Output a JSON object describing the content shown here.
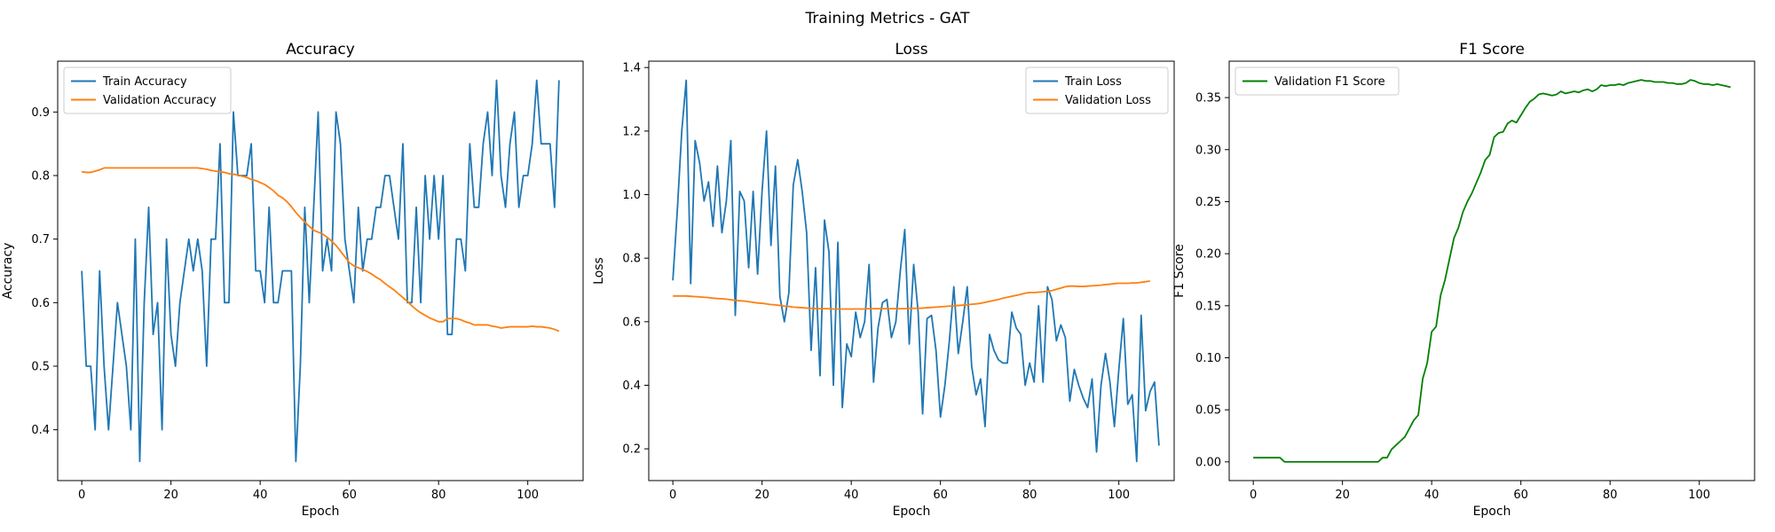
{
  "figure": {
    "suptitle": "Training Metrics - GAT"
  },
  "chart_data": [
    {
      "type": "line",
      "title": "Accuracy",
      "xlabel": "Epoch",
      "ylabel": "Accuracy",
      "xlim": [
        -5.4,
        112.4
      ],
      "ylim": [
        0.32,
        0.98
      ],
      "xticks": [
        0,
        20,
        40,
        60,
        80,
        100
      ],
      "yticks": [
        0.4,
        0.5,
        0.6,
        0.7,
        0.8,
        0.9
      ],
      "ytick_labels": [
        "0.4",
        "0.5",
        "0.6",
        "0.7",
        "0.8",
        "0.9"
      ],
      "legend_loc": "upper left",
      "grid": false,
      "series": [
        {
          "name": "Train Accuracy",
          "color": "#1f77b4",
          "values": [
            0.65,
            0.5,
            0.5,
            0.4,
            0.65,
            0.5,
            0.4,
            0.5,
            0.6,
            0.55,
            0.5,
            0.4,
            0.7,
            0.35,
            0.6,
            0.75,
            0.55,
            0.6,
            0.4,
            0.7,
            0.55,
            0.5,
            0.6,
            0.65,
            0.7,
            0.65,
            0.7,
            0.65,
            0.5,
            0.7,
            0.7,
            0.85,
            0.6,
            0.6,
            0.9,
            0.8,
            0.8,
            0.8,
            0.85,
            0.65,
            0.65,
            0.6,
            0.75,
            0.6,
            0.6,
            0.65,
            0.65,
            0.65,
            0.35,
            0.5,
            0.75,
            0.6,
            0.75,
            0.9,
            0.65,
            0.7,
            0.65,
            0.9,
            0.85,
            0.7,
            0.65,
            0.6,
            0.75,
            0.65,
            0.7,
            0.7,
            0.75,
            0.75,
            0.8,
            0.8,
            0.75,
            0.7,
            0.85,
            0.6,
            0.6,
            0.75,
            0.6,
            0.8,
            0.7,
            0.8,
            0.7,
            0.8,
            0.55,
            0.55,
            0.7,
            0.7,
            0.65,
            0.85,
            0.75,
            0.75,
            0.85,
            0.9,
            0.8,
            0.95,
            0.8,
            0.75,
            0.85,
            0.9,
            0.75,
            0.8,
            0.8,
            0.85,
            0.95,
            0.85,
            0.85,
            0.85,
            0.75,
            0.95
          ]
        },
        {
          "name": "Validation Accuracy",
          "color": "#ff7f0e",
          "values": [
            0.806,
            0.805,
            0.805,
            0.807,
            0.809,
            0.812,
            0.812,
            0.812,
            0.812,
            0.812,
            0.812,
            0.812,
            0.812,
            0.812,
            0.812,
            0.812,
            0.812,
            0.812,
            0.812,
            0.812,
            0.812,
            0.812,
            0.812,
            0.812,
            0.812,
            0.812,
            0.812,
            0.811,
            0.81,
            0.808,
            0.807,
            0.806,
            0.805,
            0.803,
            0.802,
            0.801,
            0.799,
            0.797,
            0.794,
            0.792,
            0.789,
            0.786,
            0.781,
            0.776,
            0.769,
            0.765,
            0.759,
            0.751,
            0.742,
            0.734,
            0.727,
            0.72,
            0.714,
            0.711,
            0.708,
            0.703,
            0.697,
            0.69,
            0.681,
            0.672,
            0.663,
            0.658,
            0.655,
            0.652,
            0.649,
            0.645,
            0.64,
            0.636,
            0.63,
            0.625,
            0.62,
            0.614,
            0.608,
            0.602,
            0.595,
            0.589,
            0.584,
            0.58,
            0.576,
            0.573,
            0.57,
            0.57,
            0.575,
            0.575,
            0.575,
            0.573,
            0.57,
            0.568,
            0.565,
            0.565,
            0.565,
            0.565,
            0.563,
            0.562,
            0.56,
            0.561,
            0.562,
            0.562,
            0.562,
            0.562,
            0.562,
            0.563,
            0.562,
            0.562,
            0.561,
            0.56,
            0.558,
            0.555
          ]
        }
      ]
    },
    {
      "type": "line",
      "title": "Loss",
      "xlabel": "Epoch",
      "ylabel": "Loss",
      "xlim": [
        -5.4,
        112.4
      ],
      "ylim": [
        0.1,
        1.42
      ],
      "xticks": [
        0,
        20,
        40,
        60,
        80,
        100
      ],
      "yticks": [
        0.2,
        0.4,
        0.6,
        0.8,
        1.0,
        1.2,
        1.4
      ],
      "ytick_labels": [
        "0.2",
        "0.4",
        "0.6",
        "0.8",
        "1.0",
        "1.2",
        "1.4"
      ],
      "legend_loc": "upper right",
      "grid": false,
      "series": [
        {
          "name": "Train Loss",
          "color": "#1f77b4",
          "values": [
            0.73,
            0.95,
            1.2,
            1.36,
            0.72,
            1.17,
            1.1,
            0.98,
            1.04,
            0.9,
            1.09,
            0.88,
            0.98,
            1.17,
            0.62,
            1.01,
            0.98,
            0.77,
            1.01,
            0.75,
            1.01,
            1.2,
            0.84,
            1.09,
            0.68,
            0.6,
            0.69,
            1.03,
            1.11,
            1.01,
            0.88,
            0.51,
            0.77,
            0.43,
            0.92,
            0.82,
            0.4,
            0.85,
            0.33,
            0.53,
            0.49,
            0.63,
            0.55,
            0.6,
            0.78,
            0.41,
            0.58,
            0.66,
            0.67,
            0.55,
            0.6,
            0.76,
            0.89,
            0.53,
            0.78,
            0.63,
            0.31,
            0.61,
            0.62,
            0.51,
            0.3,
            0.4,
            0.54,
            0.71,
            0.5,
            0.6,
            0.71,
            0.46,
            0.37,
            0.42,
            0.27,
            0.56,
            0.51,
            0.48,
            0.47,
            0.47,
            0.63,
            0.58,
            0.56,
            0.4,
            0.47,
            0.41,
            0.65,
            0.41,
            0.71,
            0.67,
            0.54,
            0.59,
            0.55,
            0.35,
            0.45,
            0.4,
            0.36,
            0.33,
            0.42,
            0.19,
            0.4,
            0.5,
            0.41,
            0.27,
            0.45,
            0.61,
            0.34,
            0.37,
            0.16,
            0.62,
            0.32,
            0.38,
            0.41,
            0.21
          ]
        },
        {
          "name": "Validation Loss",
          "color": "#ff7f0e",
          "values": [
            0.681,
            0.681,
            0.681,
            0.681,
            0.68,
            0.679,
            0.678,
            0.677,
            0.676,
            0.674,
            0.673,
            0.672,
            0.671,
            0.669,
            0.667,
            0.666,
            0.665,
            0.663,
            0.661,
            0.659,
            0.658,
            0.656,
            0.654,
            0.653,
            0.651,
            0.649,
            0.648,
            0.646,
            0.645,
            0.644,
            0.643,
            0.642,
            0.641,
            0.641,
            0.641,
            0.641,
            0.64,
            0.64,
            0.64,
            0.64,
            0.64,
            0.64,
            0.64,
            0.64,
            0.641,
            0.641,
            0.641,
            0.641,
            0.641,
            0.641,
            0.641,
            0.641,
            0.641,
            0.642,
            0.642,
            0.642,
            0.643,
            0.644,
            0.645,
            0.646,
            0.647,
            0.648,
            0.649,
            0.65,
            0.651,
            0.652,
            0.653,
            0.655,
            0.656,
            0.658,
            0.661,
            0.664,
            0.667,
            0.67,
            0.674,
            0.677,
            0.68,
            0.683,
            0.686,
            0.69,
            0.692,
            0.692,
            0.693,
            0.694,
            0.696,
            0.698,
            0.702,
            0.706,
            0.71,
            0.712,
            0.712,
            0.711,
            0.711,
            0.712,
            0.713,
            0.714,
            0.715,
            0.717,
            0.718,
            0.72,
            0.721,
            0.721,
            0.721,
            0.722,
            0.722,
            0.724,
            0.726,
            0.728
          ]
        }
      ]
    },
    {
      "type": "line",
      "title": "F1 Score",
      "xlabel": "Epoch",
      "ylabel": "F1 Score",
      "xlim": [
        -5.4,
        112.4
      ],
      "ylim": [
        -0.018,
        0.385
      ],
      "xticks": [
        0,
        20,
        40,
        60,
        80,
        100
      ],
      "yticks": [
        0.0,
        0.05,
        0.1,
        0.15,
        0.2,
        0.25,
        0.3,
        0.35
      ],
      "ytick_labels": [
        "0.00",
        "0.05",
        "0.10",
        "0.15",
        "0.20",
        "0.25",
        "0.30",
        "0.35"
      ],
      "legend_loc": "upper left",
      "grid": false,
      "series": [
        {
          "name": "Validation F1 Score",
          "color": "#008000",
          "values": [
            0.004,
            0.004,
            0.004,
            0.004,
            0.004,
            0.004,
            0.004,
            0.0,
            0.0,
            0.0,
            0.0,
            0.0,
            0.0,
            0.0,
            0.0,
            0.0,
            0.0,
            0.0,
            0.0,
            0.0,
            0.0,
            0.0,
            0.0,
            0.0,
            0.0,
            0.0,
            0.0,
            0.0,
            0.0,
            0.004,
            0.004,
            0.012,
            0.016,
            0.02,
            0.024,
            0.032,
            0.04,
            0.045,
            0.08,
            0.095,
            0.125,
            0.13,
            0.16,
            0.175,
            0.195,
            0.215,
            0.225,
            0.24,
            0.25,
            0.258,
            0.268,
            0.278,
            0.29,
            0.295,
            0.312,
            0.316,
            0.317,
            0.325,
            0.328,
            0.326,
            0.333,
            0.34,
            0.346,
            0.349,
            0.353,
            0.354,
            0.353,
            0.352,
            0.353,
            0.356,
            0.354,
            0.355,
            0.356,
            0.355,
            0.357,
            0.358,
            0.356,
            0.358,
            0.362,
            0.361,
            0.362,
            0.362,
            0.363,
            0.362,
            0.364,
            0.365,
            0.366,
            0.367,
            0.366,
            0.366,
            0.365,
            0.365,
            0.365,
            0.364,
            0.364,
            0.363,
            0.363,
            0.364,
            0.367,
            0.366,
            0.364,
            0.363,
            0.363,
            0.362,
            0.363,
            0.362,
            0.361,
            0.36
          ]
        }
      ]
    }
  ]
}
